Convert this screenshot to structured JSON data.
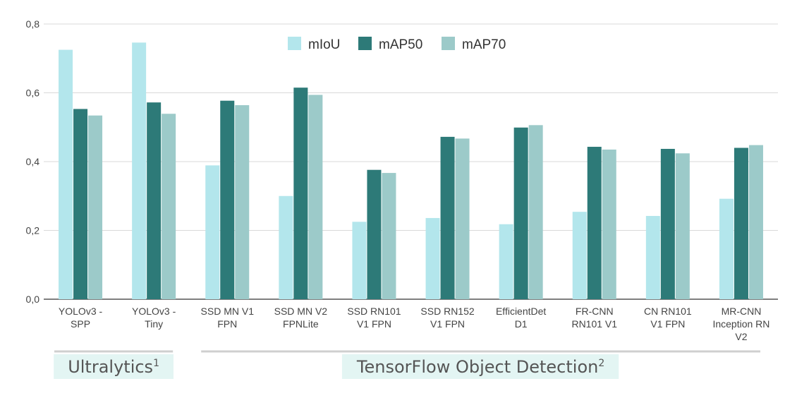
{
  "chart_data": {
    "type": "bar",
    "categories": [
      [
        "YOLOv3 -",
        "SPP"
      ],
      [
        "YOLOv3 -",
        "Tiny"
      ],
      [
        "SSD MN V1",
        "FPN"
      ],
      [
        "SSD MN V2",
        "FPNLite"
      ],
      [
        "SSD RN101",
        "V1 FPN"
      ],
      [
        "SSD RN152",
        "V1 FPN"
      ],
      [
        "EfficientDet",
        "D1"
      ],
      [
        "FR-CNN",
        "RN101 V1"
      ],
      [
        "CN RN101",
        "V1 FPN"
      ],
      [
        "MR-CNN",
        "Inception RN",
        "V2"
      ]
    ],
    "series": [
      {
        "name": "mIoU",
        "color": "#b3e6ec",
        "values": [
          0.725,
          0.746,
          0.389,
          0.3,
          0.225,
          0.236,
          0.218,
          0.254,
          0.242,
          0.292
        ]
      },
      {
        "name": "mAP50",
        "color": "#2d7a78",
        "values": [
          0.553,
          0.572,
          0.577,
          0.615,
          0.376,
          0.472,
          0.499,
          0.443,
          0.437,
          0.44
        ]
      },
      {
        "name": "mAP70",
        "color": "#9ccac9",
        "values": [
          0.534,
          0.539,
          0.564,
          0.594,
          0.367,
          0.467,
          0.506,
          0.435,
          0.424,
          0.448
        ]
      }
    ],
    "ylim": [
      0,
      0.8
    ],
    "yticks": [
      "0,0",
      "0,2",
      "0,4",
      "0,6",
      "0,8"
    ],
    "grid": true,
    "legend": "top-center",
    "groups": [
      {
        "label": "Ultralytics",
        "sup": "1",
        "span": [
          0,
          1
        ],
        "color": "#e3f5f3"
      },
      {
        "label": "TensorFlow Object Detection",
        "sup": "2",
        "span": [
          2,
          9
        ],
        "color": "#e3f5f3"
      }
    ]
  }
}
